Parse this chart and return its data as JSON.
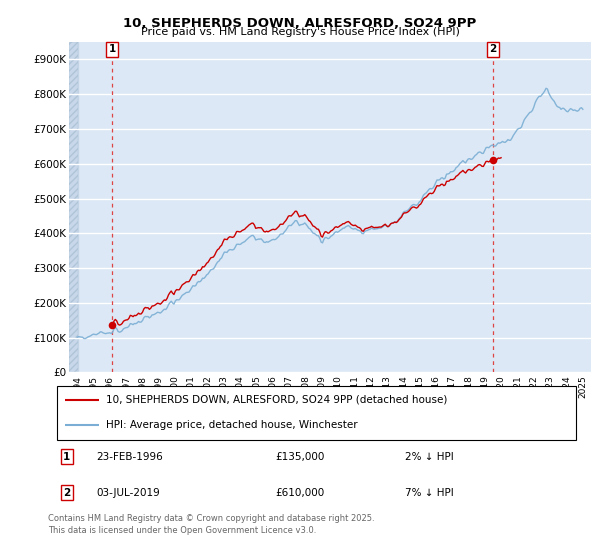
{
  "title": "10, SHEPHERDS DOWN, ALRESFORD, SO24 9PP",
  "subtitle": "Price paid vs. HM Land Registry's House Price Index (HPI)",
  "ylim": [
    0,
    950000
  ],
  "yticks": [
    0,
    100000,
    200000,
    300000,
    400000,
    500000,
    600000,
    700000,
    800000,
    900000
  ],
  "ytick_labels": [
    "£0",
    "£100K",
    "£200K",
    "£300K",
    "£400K",
    "£500K",
    "£600K",
    "£700K",
    "£800K",
    "£900K"
  ],
  "xlim_start": 1993.5,
  "xlim_end": 2025.5,
  "xticks": [
    1994,
    1995,
    1996,
    1997,
    1998,
    1999,
    2000,
    2001,
    2002,
    2003,
    2004,
    2005,
    2006,
    2007,
    2008,
    2009,
    2010,
    2011,
    2012,
    2013,
    2014,
    2015,
    2016,
    2017,
    2018,
    2019,
    2020,
    2021,
    2022,
    2023,
    2024,
    2025
  ],
  "hpi_color": "#7aaed4",
  "price_color": "#cc0000",
  "dashed_line_color": "#dd4444",
  "marker_color": "#cc0000",
  "background_chart": "#dce8f5",
  "background_hatch_color": "#c8d8ea",
  "grid_color": "#ffffff",
  "sale1_x": 1996.15,
  "sale1_y": 135000,
  "sale1_label": "1",
  "sale2_x": 2019.5,
  "sale2_y": 610000,
  "sale2_label": "2",
  "legend_line1": "10, SHEPHERDS DOWN, ALRESFORD, SO24 9PP (detached house)",
  "legend_line2": "HPI: Average price, detached house, Winchester",
  "note1_label": "1",
  "note1_date": "23-FEB-1996",
  "note1_price": "£135,000",
  "note1_hpi": "2% ↓ HPI",
  "note2_label": "2",
  "note2_date": "03-JUL-2019",
  "note2_price": "£610,000",
  "note2_hpi": "7% ↓ HPI",
  "footer": "Contains HM Land Registry data © Crown copyright and database right 2025.\nThis data is licensed under the Open Government Licence v3.0."
}
